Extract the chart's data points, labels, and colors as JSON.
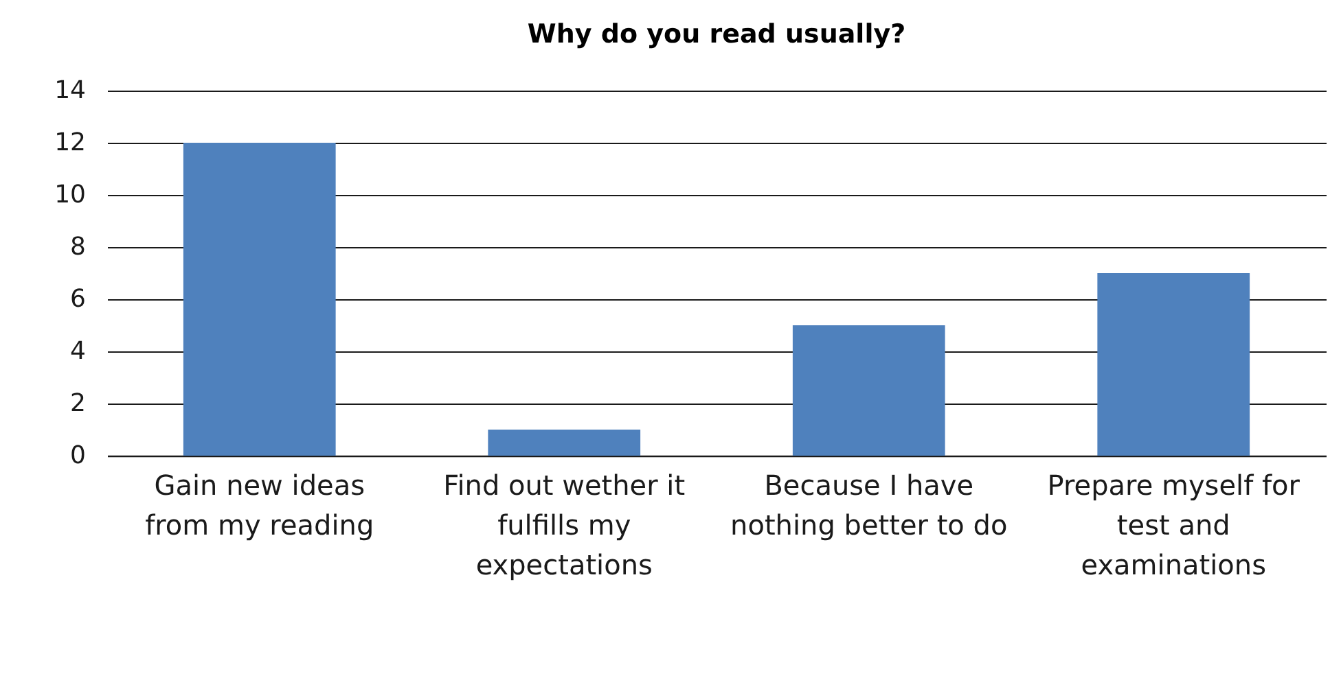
{
  "chart_data": {
    "type": "bar",
    "title": "Why do you read usually?",
    "categories": [
      "Gain new ideas from my reading",
      "Find out wether it fulfills my expectations",
      "Because I have nothing better to do",
      "Prepare myself for test and examinations"
    ],
    "values": [
      12,
      1,
      5,
      7
    ],
    "color": "#4f81bd",
    "ylim": [
      0,
      14
    ],
    "yticks": [
      0,
      2,
      4,
      6,
      8,
      10,
      12,
      14
    ],
    "grid": "y"
  }
}
